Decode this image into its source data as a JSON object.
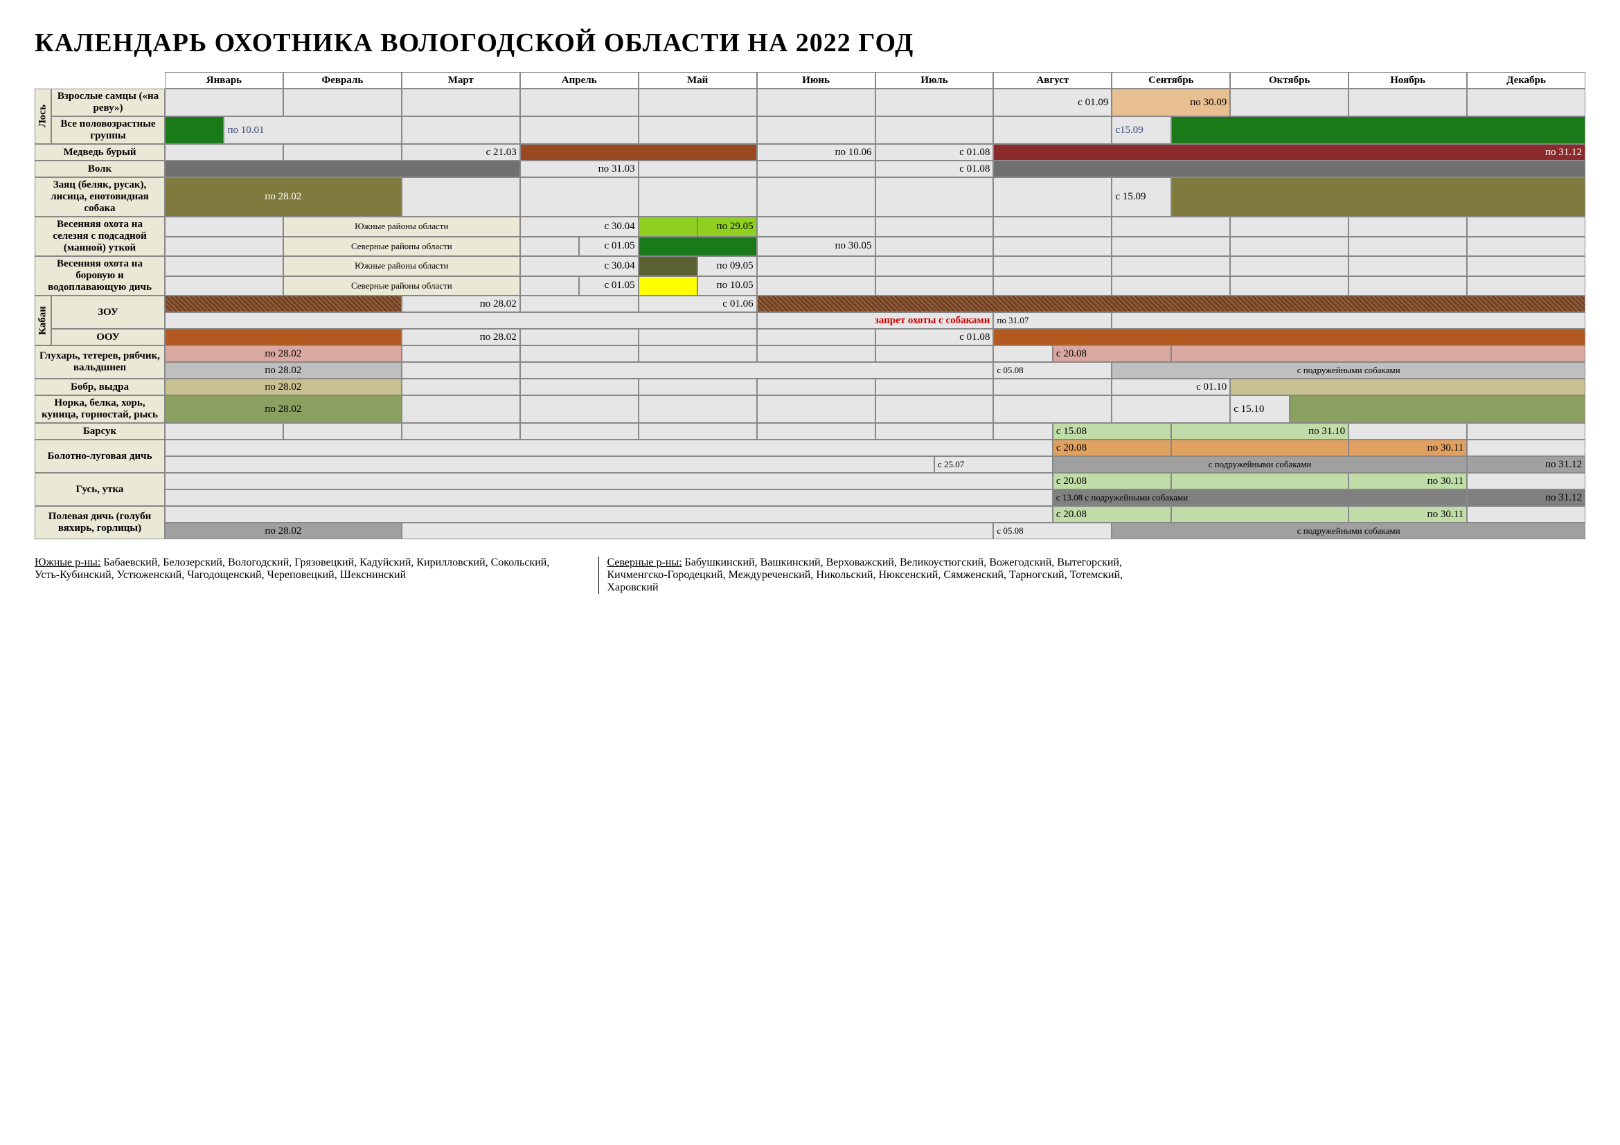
{
  "title": "КАЛЕНДАРЬ ОХОТНИКА ВОЛОГОДСКОЙ ОБЛАСТИ НА 2022 ГОД",
  "months": [
    "Январь",
    "Февраль",
    "Март",
    "Апрель",
    "Май",
    "Июнь",
    "Июль",
    "Август",
    "Сентябрь",
    "Октябрь",
    "Ноябрь",
    "Декабрь"
  ],
  "colors": {
    "empty": "#e6e6e6",
    "label": "#eae9d6",
    "dkgreen": "#1a7a1a",
    "beige_orange": "#e8bf90",
    "brown1": "#9a4820",
    "maroon": "#8a2a2a",
    "grey_dark": "#6f6f6f",
    "olive": "#7f7a3e",
    "lime": "#90d020",
    "dgreen2": "#1a7a1a",
    "dkolive": "#5a6030",
    "yellow": "#ffff00",
    "brown_hatch": "#7a4a2a",
    "rust": "#b25a1f",
    "pink": "#d9a8a0",
    "grey_light": "#bfbfbf",
    "tan": "#c8c090",
    "sage": "#8aa060",
    "ltgreen": "#c0dca8",
    "orange": "#e0a060",
    "greyb": "#a0a0a0",
    "grey_mid": "#808080"
  },
  "cats": {
    "los": "Лось",
    "kaban": "Кабан"
  },
  "rows": {
    "los1": "Взрослые самцы («на реву»)",
    "los2": "Все половозрастные группы",
    "bear": "Медведь бурый",
    "wolf": "Волк",
    "hare": "Заяц (беляк, русак), лисица, енотовидная собака",
    "spring1": "Весенняя охота на селезня с подсадной (манной) уткой",
    "spring2": "Весенняя охота на боровую и водоплавающую дичь",
    "zou": "ЗОУ",
    "oou": "ООУ",
    "gluhar": "Глухарь, тетерев, рябчик, вальдшнеп",
    "bobr": "Бобр, выдра",
    "norka": "Норка, белка, хорь, куница, горностай, рысь",
    "barsuk": "Барсук",
    "bolot": "Болотно-луговая дичь",
    "gus": "Гусь, утка",
    "pole": "Полевая дичь (голуби вяхирь, горлицы)"
  },
  "regions": {
    "south": "Южные районы области",
    "north": "Северные районы области"
  },
  "txt": {
    "s0109": "с 01.09",
    "po3009": "по 30.09",
    "po1001": "по 10.01",
    "s1509": "с15.09",
    "s2103": "с 21.03",
    "po1006": "по 10.06",
    "s0108": "с 01.08",
    "po3112": "по 31.12",
    "po3103": "по 31.03",
    "po2802": "по 28.02",
    "s1509b": "с 15.09",
    "s3004": "с 30.04",
    "po2905": "по 29.05",
    "s0105": "с 01.05",
    "po3005": "по 30.05",
    "po0905": "по 09.05",
    "po1005": "по 10.05",
    "s0106": "с 01.06",
    "zapret": "запрет охоты с собаками",
    "po3107": "по 31.07",
    "s2008": "с 20.08",
    "s0508": "с 05.08",
    "dogs": "с подружейными собаками",
    "s0110": "с  01.10",
    "s1510": "с 15.10",
    "s1508": "с 15.08",
    "po3110": "по 31.10",
    "s2507": "с 25.07",
    "po3011": "по 30.11",
    "s1308": "с 13.08 с подружейными собаками"
  },
  "footer": {
    "south_pfx": "Южные р-ны:",
    "south_txt": " Бабаевский, Белозерский, Вологодский, Грязовецкий, Кадуйский, Кирилловский, Сокольский, Усть-Кубинский, Устюженский, Чагодощенский, Череповецкий, Шекснинский",
    "north_pfx": "Северные р-ны:",
    "north_txt": " Бабушкинский, Вашкинский, Верховажский, Великоустюгский, Вожегодский, Вытегорский, Кичменгско-Городецкий, Междуреченский, Никольский, Нюксенский, Сямженский, Тарногский, Тотемский, Харовский"
  }
}
